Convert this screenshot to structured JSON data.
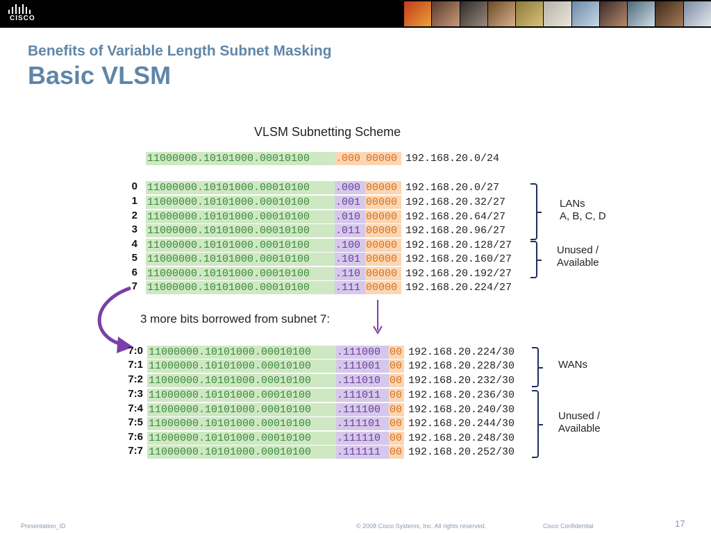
{
  "brand": {
    "logo_text": "CISCO"
  },
  "header": {
    "subtitle": "Benefits of Variable Length Subnet Masking",
    "title": "Basic VLSM"
  },
  "diagram": {
    "title": "VLSM Subnetting  Scheme",
    "base_row": {
      "network": "11000000.10101000.00010100",
      "subnet": ".000",
      "host": "00000",
      "address": "192.168.20.0/24"
    },
    "subnets": [
      {
        "index": "0",
        "network": "11000000.10101000.00010100",
        "subnet": ".000",
        "host": "00000",
        "address": "192.168.20.0/27"
      },
      {
        "index": "1",
        "network": "11000000.10101000.00010100",
        "subnet": ".001",
        "host": "00000",
        "address": "192.168.20.32/27"
      },
      {
        "index": "2",
        "network": "11000000.10101000.00010100",
        "subnet": ".010",
        "host": "00000",
        "address": "192.168.20.64/27"
      },
      {
        "index": "3",
        "network": "11000000.10101000.00010100",
        "subnet": ".011",
        "host": "00000",
        "address": "192.168.20.96/27"
      },
      {
        "index": "4",
        "network": "11000000.10101000.00010100",
        "subnet": ".100",
        "host": "00000",
        "address": "192.168.20.128/27"
      },
      {
        "index": "5",
        "network": "11000000.10101000.00010100",
        "subnet": ".101",
        "host": "00000",
        "address": "192.168.20.160/27"
      },
      {
        "index": "6",
        "network": "11000000.10101000.00010100",
        "subnet": ".110",
        "host": "00000",
        "address": "192.168.20.192/27"
      },
      {
        "index": "7",
        "network": "11000000.10101000.00010100",
        "subnet": ".111",
        "host": "00000",
        "address": "192.168.20.224/27"
      }
    ],
    "subnet_labels": {
      "lans": "LANs\nA, B, C, D",
      "unused": "Unused /\nAvailable"
    },
    "borrow_text": "3 more bits borrowed  from subnet  7:",
    "wan_subnets": [
      {
        "index": "7:0",
        "network": "11000000.10101000.00010100",
        "subnet": ".111000",
        "host": "00",
        "address": "192.168.20.224/30"
      },
      {
        "index": "7:1",
        "network": "11000000.10101000.00010100",
        "subnet": ".111001",
        "host": "00",
        "address": "192.168.20.228/30"
      },
      {
        "index": "7:2",
        "network": "11000000.10101000.00010100",
        "subnet": ".111010",
        "host": "00",
        "address": "192.168.20.232/30"
      },
      {
        "index": "7:3",
        "network": "11000000.10101000.00010100",
        "subnet": ".111011",
        "host": "00",
        "address": "192.168.20.236/30"
      },
      {
        "index": "7:4",
        "network": "11000000.10101000.00010100",
        "subnet": ".111100",
        "host": "00",
        "address": "192.168.20.240/30"
      },
      {
        "index": "7:5",
        "network": "11000000.10101000.00010100",
        "subnet": ".111101",
        "host": "00",
        "address": "192.168.20.244/30"
      },
      {
        "index": "7:6",
        "network": "11000000.10101000.00010100",
        "subnet": ".111110",
        "host": "00",
        "address": "192.168.20.248/30"
      },
      {
        "index": "7:7",
        "network": "11000000.10101000.00010100",
        "subnet": ".111111",
        "host": "00",
        "address": "192.168.20.252/30"
      }
    ],
    "wan_labels": {
      "wans": "WANs",
      "unused": "Unused /\nAvailable"
    },
    "colors": {
      "network_bg": "#cfe8c4",
      "network_text": "#3a8a3a",
      "subnet_bg": "#d6c8ea",
      "subnet_text": "#6b3fa0",
      "host_bg": "#fbd6b4",
      "host_text": "#d97018",
      "arrow": "#7b3fa8",
      "bracket": "#1f2d5a"
    }
  },
  "footer": {
    "presentation_id": "Presentation_ID",
    "copyright": "© 2008 Cisco Systems, Inc. All rights reserved.",
    "confidential": "Cisco Confidential",
    "page_number": "17"
  }
}
